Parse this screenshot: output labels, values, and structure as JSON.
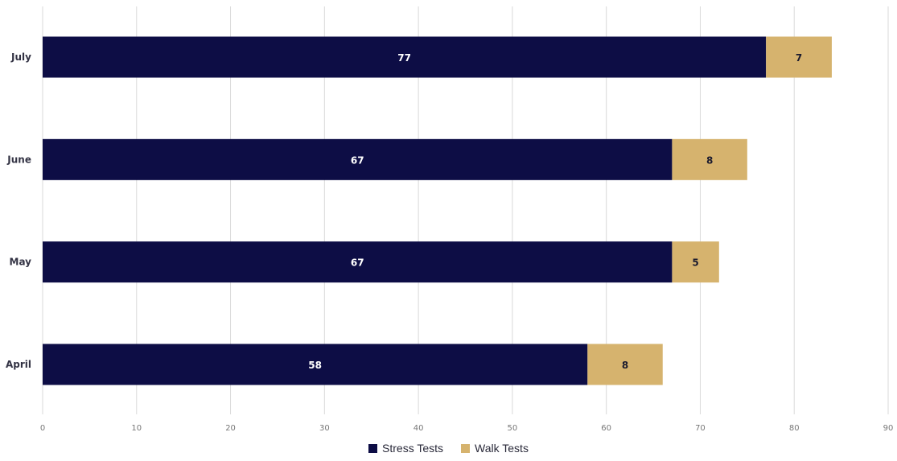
{
  "chart_data": {
    "type": "bar",
    "orientation": "horizontal",
    "stacked": true,
    "categories": [
      "July",
      "June",
      "May",
      "April"
    ],
    "series": [
      {
        "name": "Stress Tests",
        "values": [
          77,
          67,
          67,
          58
        ],
        "color": "#0d0d45",
        "label_color": "#ffffff"
      },
      {
        "name": "Walk Tests",
        "values": [
          7,
          8,
          5,
          8
        ],
        "color": "#d6b36e",
        "label_color": "#1a1a2e"
      }
    ],
    "x_ticks": [
      "0",
      "10",
      "20",
      "30",
      "40",
      "50",
      "60",
      "70",
      "80",
      "90"
    ],
    "xlim": [
      0,
      90
    ],
    "title": "",
    "xlabel": "",
    "ylabel": "",
    "grid": "vertical",
    "legend_position": "bottom",
    "data_labels": true
  }
}
